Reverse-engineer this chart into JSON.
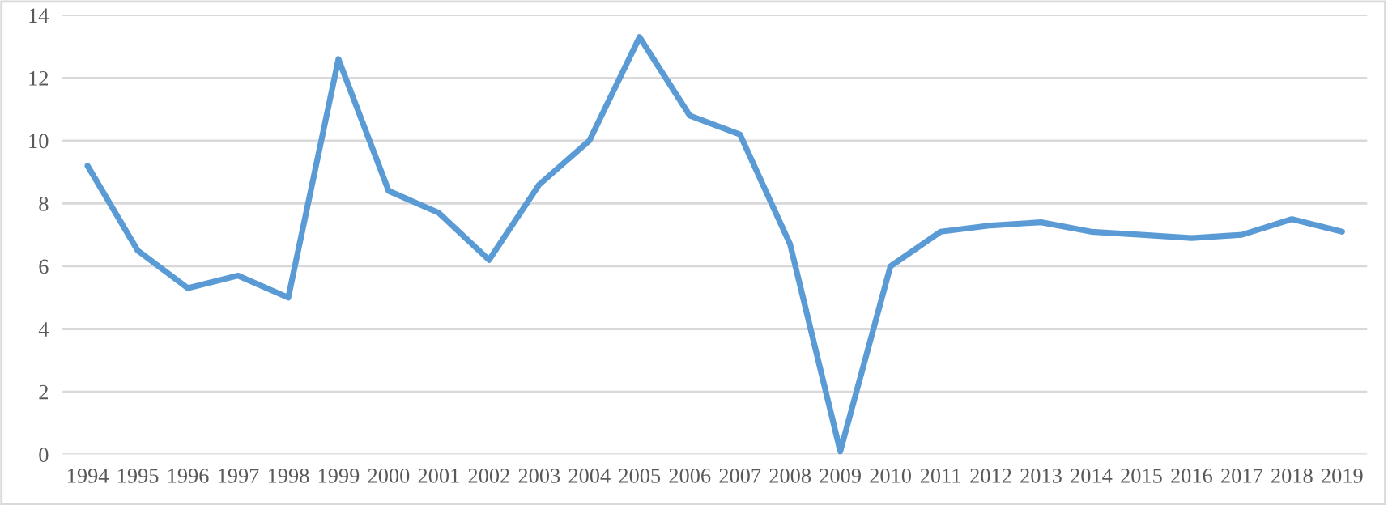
{
  "chart_data": {
    "type": "line",
    "categories": [
      "1994",
      "1995",
      "1996",
      "1997",
      "1998",
      "1999",
      "2000",
      "2001",
      "2002",
      "2003",
      "2004",
      "2005",
      "2006",
      "2007",
      "2008",
      "2009",
      "2010",
      "2011",
      "2012",
      "2013",
      "2014",
      "2015",
      "2016",
      "2017",
      "2018",
      "2019"
    ],
    "series": [
      {
        "color": "#5b9bd5",
        "values": [
          9.2,
          6.5,
          5.3,
          5.7,
          5.0,
          12.6,
          8.4,
          7.7,
          6.2,
          8.6,
          10.0,
          13.3,
          10.8,
          10.2,
          6.7,
          0.1,
          6.0,
          7.1,
          7.3,
          7.4,
          7.1,
          7.0,
          6.9,
          7.0,
          7.5,
          7.1
        ]
      }
    ],
    "ylim": [
      0,
      14
    ],
    "yticks": [
      0,
      2,
      4,
      6,
      8,
      10,
      12,
      14
    ],
    "grid": "y",
    "marker": "none",
    "line_style": "solid"
  }
}
